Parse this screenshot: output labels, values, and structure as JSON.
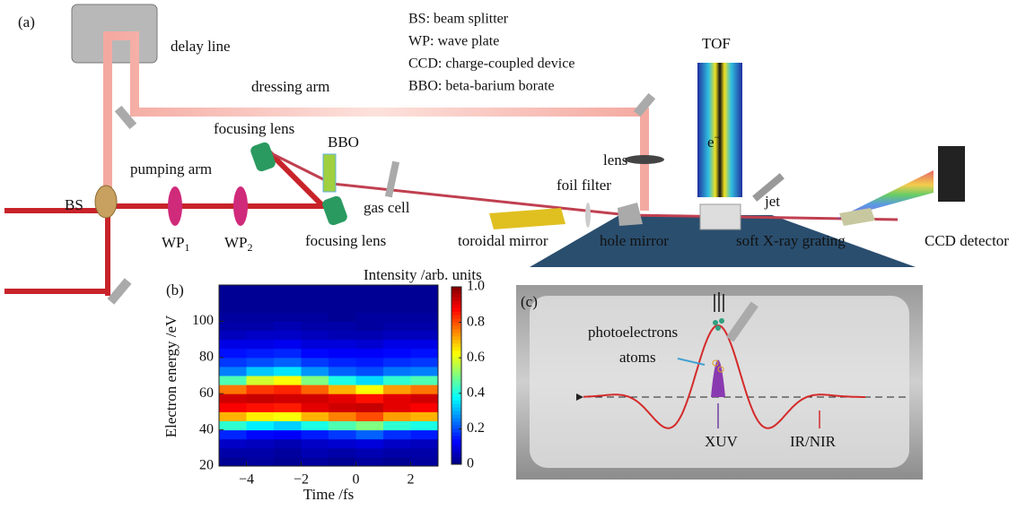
{
  "panel_a": {
    "panel_label": "(a)",
    "legend": [
      "BS: beam splitter",
      "WP: wave plate",
      "CCD: charge-coupled device",
      "BBO: beta-barium borate"
    ],
    "labels": {
      "delay_line": "delay line",
      "dressing_arm": "dressing arm",
      "pumping_arm": "pumping arm",
      "bs": "BS",
      "wp1": {
        "text": "WP",
        "sub": "1"
      },
      "wp2": {
        "text": "WP",
        "sub": "2"
      },
      "focusing_lens_top": "focusing lens",
      "focusing_lens_bottom": "focusing lens",
      "bbo": "BBO",
      "gas_cell": "gas cell",
      "lens": "lens",
      "foil_filter": "foil filter",
      "tof": "TOF",
      "electron": {
        "text": "e",
        "sup": "−"
      },
      "jet": "jet",
      "toroidal_mirror": "toroidal mirror",
      "hole_mirror": "hole mirror",
      "grating": "soft X-ray grating",
      "ccd_detector": "CCD detector"
    }
  },
  "chart_data": {
    "type": "heatmap",
    "panel_label": "(b)",
    "x_label": "Time /fs",
    "y_label": "Electron energy /eV",
    "colorbar_label": "Intensity /arb. units",
    "colormap": "jet",
    "xlim": [
      -5,
      3
    ],
    "ylim": [
      20,
      120
    ],
    "xticks": [
      {
        "value": -4,
        "label": "−4"
      },
      {
        "value": -2,
        "label": "−2"
      },
      0,
      2
    ],
    "yticks": [
      20,
      40,
      60,
      80,
      100
    ],
    "clim": [
      0,
      1
    ],
    "cticks": [
      0,
      0.2,
      0.4,
      0.6,
      0.8,
      {
        "value": 1,
        "label": "1.0"
      }
    ],
    "x": [
      -4.5,
      -3.5,
      -2.5,
      -1.5,
      -0.5,
      0.5,
      1.5,
      2.5
    ],
    "y": [
      22.5,
      27.5,
      32.5,
      37.5,
      42.5,
      47.5,
      52.5,
      57.5,
      62.5,
      67.5,
      72.5,
      77.5,
      82.5,
      87.5,
      92.5,
      97.5,
      102.5,
      107.5,
      112.5,
      117.5
    ],
    "z": [
      [
        0.02,
        0.03,
        0.02,
        0.03,
        0.02,
        0.03,
        0.02,
        0.03
      ],
      [
        0.04,
        0.04,
        0.03,
        0.05,
        0.04,
        0.05,
        0.04,
        0.04
      ],
      [
        0.07,
        0.06,
        0.05,
        0.07,
        0.08,
        0.09,
        0.07,
        0.06
      ],
      [
        0.16,
        0.13,
        0.12,
        0.15,
        0.18,
        0.22,
        0.17,
        0.15
      ],
      [
        0.42,
        0.36,
        0.33,
        0.4,
        0.45,
        0.5,
        0.42,
        0.4
      ],
      [
        0.7,
        0.64,
        0.62,
        0.7,
        0.75,
        0.8,
        0.72,
        0.7
      ],
      [
        0.88,
        0.86,
        0.85,
        0.9,
        0.92,
        0.93,
        0.9,
        0.88
      ],
      [
        0.92,
        0.93,
        0.92,
        0.92,
        0.9,
        0.86,
        0.9,
        0.92
      ],
      [
        0.76,
        0.82,
        0.84,
        0.78,
        0.7,
        0.62,
        0.72,
        0.76
      ],
      [
        0.45,
        0.58,
        0.62,
        0.5,
        0.4,
        0.34,
        0.42,
        0.45
      ],
      [
        0.25,
        0.32,
        0.35,
        0.27,
        0.22,
        0.2,
        0.24,
        0.25
      ],
      [
        0.18,
        0.2,
        0.22,
        0.18,
        0.16,
        0.15,
        0.17,
        0.18
      ],
      [
        0.14,
        0.15,
        0.16,
        0.13,
        0.12,
        0.12,
        0.13,
        0.14
      ],
      [
        0.1,
        0.1,
        0.11,
        0.09,
        0.09,
        0.08,
        0.1,
        0.1
      ],
      [
        0.06,
        0.07,
        0.07,
        0.06,
        0.05,
        0.05,
        0.06,
        0.06
      ],
      [
        0.04,
        0.04,
        0.05,
        0.04,
        0.04,
        0.03,
        0.04,
        0.04
      ],
      [
        0.03,
        0.03,
        0.03,
        0.03,
        0.02,
        0.03,
        0.03,
        0.03
      ],
      [
        0.02,
        0.02,
        0.02,
        0.02,
        0.02,
        0.02,
        0.02,
        0.02
      ],
      [
        0.02,
        0.02,
        0.02,
        0.02,
        0.02,
        0.02,
        0.02,
        0.02
      ],
      [
        0.02,
        0.02,
        0.02,
        0.02,
        0.02,
        0.02,
        0.02,
        0.02
      ]
    ]
  },
  "panel_c": {
    "panel_label": "(c)",
    "labels": {
      "photoelectrons": "photoelectrons",
      "atoms": "atoms",
      "xuv": "XUV",
      "ir_nir": "IR/NIR"
    }
  }
}
